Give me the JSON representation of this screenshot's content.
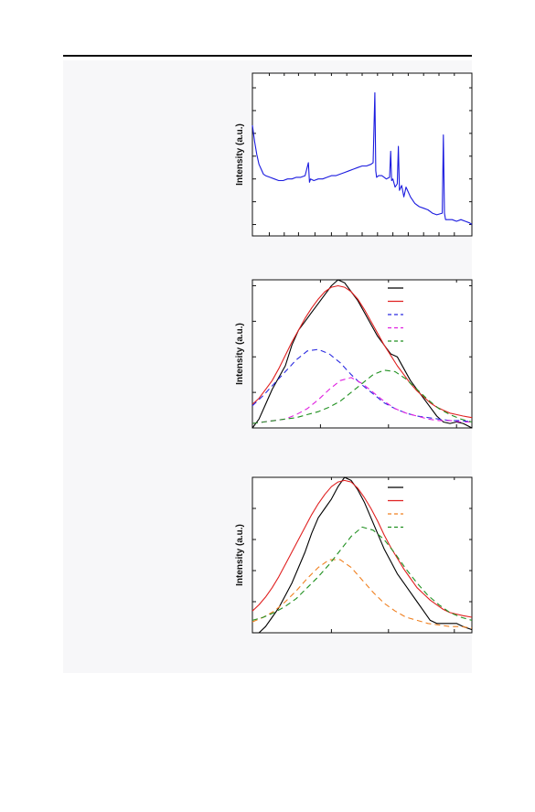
{
  "page": {},
  "charts": [
    {
      "type": "line",
      "ylabel": "Intensity (a.u.)",
      "xlim": [
        0,
        100
      ],
      "ylim": [
        0,
        100
      ],
      "series": [
        {
          "color": "#1a1adf",
          "dash": "solid",
          "x": [
            0,
            1,
            2,
            3,
            4,
            5,
            6,
            8,
            10,
            12,
            14,
            16,
            18,
            20,
            22,
            24,
            25.5,
            26,
            26.5,
            28,
            30,
            32,
            34,
            36,
            38,
            40,
            42,
            44,
            46,
            48,
            50,
            52,
            54,
            55,
            55.8,
            56.2,
            56.6,
            57.5,
            59,
            61,
            62.5,
            63,
            63.4,
            64,
            65,
            66,
            66.5,
            67,
            68,
            69,
            70,
            72,
            74,
            76,
            78,
            80,
            82,
            84,
            86.5,
            87,
            87.5,
            88,
            89,
            91,
            93,
            95,
            97,
            99,
            100
          ],
          "y": [
            68,
            58,
            50,
            44,
            41,
            38,
            37,
            36,
            35,
            34,
            34,
            35,
            35,
            36,
            36,
            37,
            45,
            33,
            35,
            34,
            35,
            35,
            36,
            37,
            37,
            38,
            39,
            40,
            41,
            42,
            43,
            43,
            44,
            45,
            88,
            40,
            36,
            37,
            37,
            35,
            36,
            52,
            34,
            35,
            30,
            32,
            55,
            28,
            31,
            24,
            30,
            24,
            20,
            18,
            17,
            16,
            14,
            13,
            14,
            62,
            14,
            10,
            10,
            10,
            9,
            10,
            9,
            8,
            7
          ]
        }
      ]
    },
    {
      "type": "line",
      "ylabel": "Intensity (a.u.)",
      "xlim": [
        0,
        100
      ],
      "ylim": [
        0,
        100
      ],
      "legend": {
        "position": "top-right",
        "swatches": [
          "#000000",
          "#e02020",
          "#2a2ae0",
          "#e020e0",
          "#209020"
        ]
      },
      "series": [
        {
          "color": "#000000",
          "dash": "solid",
          "x": [
            0,
            3,
            6,
            9,
            12,
            15,
            18,
            21,
            24,
            27,
            30,
            33,
            36,
            39,
            42,
            45,
            48,
            51,
            54,
            57,
            60,
            63,
            66,
            69,
            72,
            75,
            78,
            81,
            84,
            87,
            90,
            93,
            96,
            100
          ],
          "y": [
            0,
            6,
            16,
            26,
            34,
            42,
            56,
            66,
            72,
            78,
            84,
            90,
            96,
            100,
            98,
            92,
            86,
            78,
            70,
            62,
            56,
            50,
            48,
            40,
            32,
            26,
            20,
            14,
            8,
            4,
            3,
            4,
            3,
            0
          ]
        },
        {
          "color": "#e02020",
          "dash": "solid",
          "x": [
            0,
            3,
            6,
            9,
            12,
            15,
            18,
            21,
            24,
            27,
            30,
            33,
            36,
            39,
            42,
            45,
            48,
            51,
            54,
            57,
            60,
            63,
            66,
            69,
            72,
            75,
            78,
            81,
            84,
            87,
            90,
            93,
            96,
            100
          ],
          "y": [
            16,
            20,
            26,
            32,
            40,
            49,
            58,
            66,
            74,
            81,
            87,
            92,
            95,
            96,
            95,
            92,
            87,
            80,
            72,
            64,
            56,
            49,
            42,
            36,
            30,
            25,
            21,
            17,
            14,
            12,
            10,
            9,
            8,
            7
          ]
        },
        {
          "color": "#2a2ae0",
          "dash": "6,4",
          "x": [
            0,
            5,
            10,
            15,
            20,
            25,
            30,
            35,
            40,
            45,
            50,
            55,
            60,
            65,
            70,
            75,
            80,
            85,
            90,
            95,
            100
          ],
          "y": [
            15,
            22,
            30,
            38,
            46,
            52,
            53,
            50,
            44,
            36,
            29,
            23,
            17,
            13,
            10,
            8,
            7,
            6,
            5,
            5,
            4
          ]
        },
        {
          "color": "#e020e0",
          "dash": "6,4",
          "x": [
            0,
            5,
            10,
            15,
            20,
            25,
            30,
            35,
            40,
            45,
            50,
            55,
            60,
            65,
            70,
            75,
            80,
            85,
            90,
            95,
            100
          ],
          "y": [
            3,
            4,
            5,
            6,
            9,
            13,
            19,
            26,
            32,
            34,
            30,
            24,
            18,
            13,
            10,
            8,
            6,
            5,
            5,
            4,
            4
          ]
        },
        {
          "color": "#209020",
          "dash": "6,4",
          "x": [
            0,
            5,
            10,
            15,
            20,
            25,
            30,
            35,
            40,
            45,
            50,
            55,
            60,
            65,
            70,
            75,
            80,
            85,
            90,
            95,
            100
          ],
          "y": [
            3,
            4,
            5,
            6,
            7,
            9,
            11,
            14,
            18,
            24,
            30,
            36,
            39,
            38,
            33,
            26,
            19,
            13,
            9,
            6,
            4
          ]
        }
      ]
    },
    {
      "type": "line",
      "ylabel": "Intensity (a.u.)",
      "xlim": [
        0,
        100
      ],
      "ylim": [
        0,
        100
      ],
      "legend": {
        "position": "top-right",
        "swatches": [
          "#000000",
          "#e02020",
          "#f08020",
          "#209020"
        ]
      },
      "series": [
        {
          "color": "#000000",
          "dash": "solid",
          "x": [
            0,
            3,
            6,
            9,
            12,
            15,
            18,
            21,
            24,
            27,
            30,
            33,
            36,
            39,
            42,
            45,
            48,
            51,
            54,
            57,
            60,
            63,
            66,
            69,
            72,
            75,
            78,
            81,
            84,
            87,
            90,
            93,
            96,
            100
          ],
          "y": [
            0,
            0,
            4,
            10,
            16,
            24,
            32,
            42,
            52,
            64,
            74,
            80,
            86,
            94,
            100,
            98,
            92,
            84,
            74,
            64,
            54,
            46,
            38,
            32,
            26,
            20,
            14,
            8,
            6,
            6,
            6,
            6,
            4,
            2
          ]
        },
        {
          "color": "#e02020",
          "dash": "solid",
          "x": [
            0,
            3,
            6,
            9,
            12,
            15,
            18,
            21,
            24,
            27,
            30,
            33,
            36,
            39,
            42,
            45,
            48,
            51,
            54,
            57,
            60,
            63,
            66,
            69,
            72,
            75,
            78,
            81,
            84,
            87,
            90,
            93,
            96,
            100
          ],
          "y": [
            14,
            18,
            23,
            29,
            36,
            44,
            52,
            60,
            68,
            76,
            83,
            89,
            94,
            97,
            98,
            97,
            93,
            87,
            80,
            72,
            63,
            55,
            48,
            41,
            35,
            29,
            25,
            21,
            18,
            15,
            13,
            12,
            11,
            10
          ]
        },
        {
          "color": "#f08020",
          "dash": "6,4",
          "x": [
            0,
            5,
            10,
            15,
            20,
            25,
            30,
            35,
            40,
            45,
            50,
            55,
            60,
            65,
            70,
            75,
            80,
            85,
            90,
            95,
            100
          ],
          "y": [
            7,
            10,
            14,
            20,
            27,
            35,
            42,
            47,
            47,
            42,
            34,
            26,
            19,
            14,
            10,
            8,
            6,
            5,
            4,
            4,
            3
          ]
        },
        {
          "color": "#209020",
          "dash": "6,4",
          "x": [
            0,
            5,
            10,
            15,
            20,
            25,
            30,
            35,
            40,
            45,
            50,
            55,
            60,
            65,
            70,
            75,
            80,
            85,
            90,
            95,
            100
          ],
          "y": [
            8,
            10,
            13,
            17,
            22,
            29,
            36,
            44,
            53,
            62,
            68,
            66,
            60,
            51,
            41,
            32,
            24,
            18,
            13,
            10,
            8
          ]
        }
      ]
    }
  ]
}
